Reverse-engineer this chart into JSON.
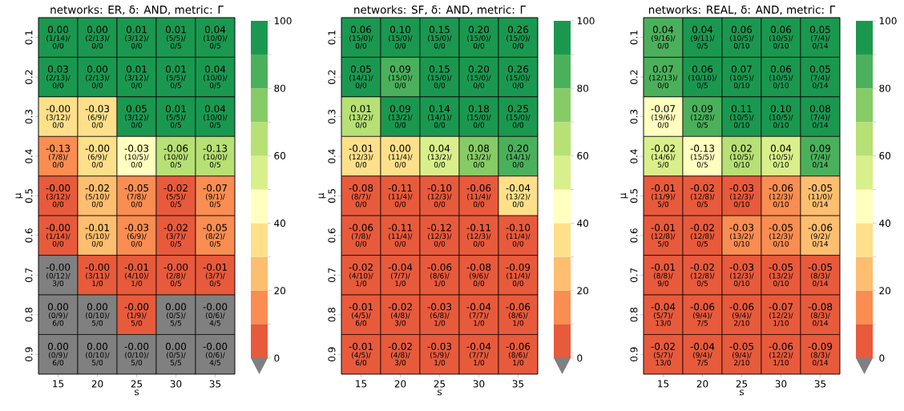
{
  "chart_data": [
    {
      "type": "heatmap",
      "title": "networks: ER, δ: AND, metric: Γ",
      "xlabel": "s",
      "ylabel": "μ",
      "categories": [
        "15",
        "20",
        "25",
        "30",
        "35"
      ],
      "y_categories": [
        "0.1",
        "0.2",
        "0.3",
        "0.4",
        "0.5",
        "0.6",
        "0.7",
        "0.8",
        "0.9"
      ],
      "clim": [
        0,
        100
      ],
      "cticks": [
        0,
        20,
        40,
        60,
        80,
        100
      ],
      "cells": [
        [
          95,
          95,
          95,
          95,
          95
        ],
        [
          95,
          95,
          95,
          95,
          95
        ],
        [
          35,
          35,
          95,
          95,
          95
        ],
        [
          15,
          35,
          45,
          65,
          65
        ],
        [
          5,
          25,
          15,
          5,
          15
        ],
        [
          5,
          25,
          15,
          5,
          15
        ],
        [
          null,
          5,
          5,
          5,
          5
        ],
        [
          null,
          null,
          5,
          null,
          null
        ],
        [
          null,
          null,
          null,
          null,
          null
        ]
      ],
      "cell_labels": [
        [
          [
            "0.00",
            "(1/14)/",
            "0/0"
          ],
          [
            "0.00",
            "(2/13)/",
            "0/0"
          ],
          [
            "0.01",
            "(3/12)/",
            "0/0"
          ],
          [
            "0.01",
            "(5/5)/",
            "0/5"
          ],
          [
            "0.04",
            "(10/0)/",
            "0/5"
          ]
        ],
        [
          [
            "0.03",
            "(2/13)/",
            "0/0"
          ],
          [
            "0.00",
            "(2/13)/",
            "0/0"
          ],
          [
            "0.01",
            "(3/12)/",
            "0/0"
          ],
          [
            "0.01",
            "(5/5)/",
            "0/5"
          ],
          [
            "0.04",
            "(10/0)/",
            "0/5"
          ]
        ],
        [
          [
            "-0.00",
            "(3/12)/",
            "0/0"
          ],
          [
            "-0.03",
            "(6/9)/",
            "0/0"
          ],
          [
            "0.05",
            "(3/12)/",
            "0/0"
          ],
          [
            "0.01",
            "(5/5)/",
            "0/5"
          ],
          [
            "0.04",
            "(10/0)/",
            "0/5"
          ]
        ],
        [
          [
            "-0.13",
            "(7/8)/",
            "0/0"
          ],
          [
            "-0.00",
            "(6/9)/",
            "0/0"
          ],
          [
            "-0.03",
            "(10/5)/",
            "0/0"
          ],
          [
            "-0.06",
            "(10/0)/",
            "0/5"
          ],
          [
            "-0.13",
            "(10/0)/",
            "0/5"
          ]
        ],
        [
          [
            "-0.00",
            "(3/12)/",
            "0/0"
          ],
          [
            "-0.02",
            "(5/10)/",
            "0/0"
          ],
          [
            "-0.05",
            "(7/8)/",
            "0/0"
          ],
          [
            "-0.02",
            "(5/5)/",
            "0/5"
          ],
          [
            "-0.07",
            "(9/1)/",
            "0/5"
          ]
        ],
        [
          [
            "-0.00",
            "(1/14)/",
            "0/0"
          ],
          [
            "-0.01",
            "(5/10)/",
            "0/0"
          ],
          [
            "-0.03",
            "(6/9)/",
            "0/0"
          ],
          [
            "-0.02",
            "(3/7)/",
            "0/5"
          ],
          [
            "-0.05",
            "(8/2)/",
            "0/5"
          ]
        ],
        [
          [
            "-0.00",
            "(0/12)/",
            "3/0"
          ],
          [
            "-0.00",
            "(3/11)/",
            "1/0"
          ],
          [
            "-0.01",
            "(4/10)/",
            "1/0"
          ],
          [
            "-0.00",
            "(2/8)/",
            "0/5"
          ],
          [
            "-0.01",
            "(3/7)/",
            "0/5"
          ]
        ],
        [
          [
            "0.00",
            "(0/9)/",
            "6/0"
          ],
          [
            "0.00",
            "(0/10)/",
            "5/0"
          ],
          [
            "-0.00",
            "(1/9)/",
            "5/0"
          ],
          [
            "0.00",
            "(0/5)/",
            "5/5"
          ],
          [
            "-0.00",
            "(0/6)/",
            "4/5"
          ]
        ],
        [
          [
            "0.00",
            "(0/9)/",
            "6/0"
          ],
          [
            "0.00",
            "(0/10)/",
            "5/0"
          ],
          [
            "-0.00",
            "(0/10)/",
            "5/0"
          ],
          [
            "0.00",
            "(0/5)/",
            "5/5"
          ],
          [
            "-0.00",
            "(0/6)/",
            "4/5"
          ]
        ]
      ]
    },
    {
      "type": "heatmap",
      "title": "networks: SF, δ: AND, metric: Γ",
      "xlabel": "s",
      "ylabel": "μ",
      "categories": [
        "15",
        "20",
        "25",
        "30",
        "35"
      ],
      "y_categories": [
        "0.1",
        "0.2",
        "0.3",
        "0.4",
        "0.5",
        "0.6",
        "0.7",
        "0.8",
        "0.9"
      ],
      "clim": [
        0,
        100
      ],
      "cticks": [
        0,
        20,
        40,
        60,
        80,
        100
      ],
      "cells": [
        [
          95,
          95,
          95,
          95,
          95
        ],
        [
          95,
          85,
          95,
          95,
          95
        ],
        [
          65,
          95,
          95,
          95,
          95
        ],
        [
          35,
          35,
          55,
          75,
          85
        ],
        [
          5,
          5,
          5,
          5,
          35
        ],
        [
          5,
          5,
          5,
          5,
          5
        ],
        [
          5,
          5,
          5,
          5,
          5
        ],
        [
          5,
          5,
          5,
          5,
          5
        ],
        [
          5,
          5,
          5,
          5,
          5
        ]
      ],
      "cell_labels": [
        [
          [
            "0.06",
            "(15/0)/",
            "0/0"
          ],
          [
            "0.10",
            "(15/0)/",
            "0/0"
          ],
          [
            "0.15",
            "(15/0)/",
            "0/0"
          ],
          [
            "0.20",
            "(15/0)/",
            "0/0"
          ],
          [
            "0.26",
            "(15/0)/",
            "0/0"
          ]
        ],
        [
          [
            "0.05",
            "(14/1)/",
            "0/0"
          ],
          [
            "0.09",
            "(15/0)/",
            "0/0"
          ],
          [
            "0.15",
            "(15/0)/",
            "0/0"
          ],
          [
            "0.20",
            "(15/0)/",
            "0/0"
          ],
          [
            "0.26",
            "(15/0)/",
            "0/0"
          ]
        ],
        [
          [
            "0.01",
            "(13/2)/",
            "0/0"
          ],
          [
            "0.09",
            "(13/2)/",
            "0/0"
          ],
          [
            "0.14",
            "(14/1)/",
            "0/0"
          ],
          [
            "0.18",
            "(15/0)/",
            "0/0"
          ],
          [
            "0.25",
            "(15/0)/",
            "0/0"
          ]
        ],
        [
          [
            "-0.01",
            "(12/3)/",
            "0/0"
          ],
          [
            "0.00",
            "(11/4)/",
            "0/0"
          ],
          [
            "0.04",
            "(13/2)/",
            "0/0"
          ],
          [
            "0.08",
            "(13/2)/",
            "0/0"
          ],
          [
            "0.20",
            "(14/1)/",
            "0/0"
          ]
        ],
        [
          [
            "-0.08",
            "(8/7)/",
            "0/0"
          ],
          [
            "-0.11",
            "(11/4)/",
            "0/0"
          ],
          [
            "-0.10",
            "(12/3)/",
            "0/0"
          ],
          [
            "-0.06",
            "(11/4)/",
            "0/0"
          ],
          [
            "-0.04",
            "(13/2)/",
            "0/0"
          ]
        ],
        [
          [
            "-0.06",
            "(7/8)/",
            "0/0"
          ],
          [
            "-0.11",
            "(11/4)/",
            "0/0"
          ],
          [
            "-0.12",
            "(12/3)/",
            "0/0"
          ],
          [
            "-0.11",
            "(12/3)/",
            "0/0"
          ],
          [
            "-0.10",
            "(11/4)/",
            "0/0"
          ]
        ],
        [
          [
            "-0.02",
            "(4/10)/",
            "1/0"
          ],
          [
            "-0.04",
            "(7/7)/",
            "1/0"
          ],
          [
            "-0.06",
            "(8/6)/",
            "1/0"
          ],
          [
            "-0.08",
            "(9/6)/",
            "0/0"
          ],
          [
            "-0.09",
            "(11/4)/",
            "0/0"
          ]
        ],
        [
          [
            "-0.01",
            "(4/5)/",
            "6/0"
          ],
          [
            "-0.02",
            "(4/8)/",
            "3/0"
          ],
          [
            "-0.03",
            "(6/8)/",
            "1/0"
          ],
          [
            "-0.04",
            "(7/7)/",
            "1/0"
          ],
          [
            "-0.06",
            "(8/6)/",
            "1/0"
          ]
        ],
        [
          [
            "-0.01",
            "(4/5)/",
            "6/0"
          ],
          [
            "-0.02",
            "(4/8)/",
            "3/0"
          ],
          [
            "-0.03",
            "(5/9)/",
            "1/0"
          ],
          [
            "-0.04",
            "(7/7)/",
            "1/0"
          ],
          [
            "-0.06",
            "(8/6)/",
            "1/0"
          ]
        ]
      ]
    },
    {
      "type": "heatmap",
      "title": "networks: REAL, δ: AND, metric: Γ",
      "xlabel": "s",
      "ylabel": "μ",
      "categories": [
        "15",
        "20",
        "25",
        "30",
        "35"
      ],
      "y_categories": [
        "0.1",
        "0.2",
        "0.3",
        "0.4",
        "0.5",
        "0.6",
        "0.7",
        "0.8",
        "0.9"
      ],
      "clim": [
        0,
        100
      ],
      "cticks": [
        0,
        20,
        40,
        60,
        80,
        100
      ],
      "cells": [
        [
          85,
          95,
          95,
          95,
          95
        ],
        [
          85,
          95,
          95,
          95,
          95
        ],
        [
          45,
          85,
          95,
          95,
          95
        ],
        [
          55,
          45,
          65,
          55,
          85
        ],
        [
          5,
          5,
          5,
          15,
          25
        ],
        [
          5,
          5,
          15,
          15,
          25
        ],
        [
          5,
          5,
          5,
          5,
          5
        ],
        [
          5,
          5,
          5,
          5,
          5
        ],
        [
          5,
          5,
          5,
          5,
          5
        ]
      ],
      "cell_labels": [
        [
          [
            "0.04",
            "(9/16)/",
            "0/0"
          ],
          [
            "0.04",
            "(9/11)/",
            "0/5"
          ],
          [
            "0.06",
            "(10/5)/",
            "0/10"
          ],
          [
            "0.06",
            "(10/5)/",
            "0/10"
          ],
          [
            "0.05",
            "(7/4)/",
            "0/14"
          ]
        ],
        [
          [
            "0.07",
            "(12/13)/",
            "0/0"
          ],
          [
            "0.06",
            "(10/10)/",
            "0/5"
          ],
          [
            "0.07",
            "(10/5)/",
            "0/10"
          ],
          [
            "0.06",
            "(10/5)/",
            "0/10"
          ],
          [
            "0.05",
            "(7/4)/",
            "0/14"
          ]
        ],
        [
          [
            "-0.07",
            "(19/6)/",
            "0/0"
          ],
          [
            "0.09",
            "(12/8)/",
            "0/5"
          ],
          [
            "0.11",
            "(10/5)/",
            "0/10"
          ],
          [
            "0.10",
            "(10/5)/",
            "0/10"
          ],
          [
            "0.08",
            "(7/4)/",
            "0/14"
          ]
        ],
        [
          [
            "-0.02",
            "(14/6)/",
            "5/0"
          ],
          [
            "-0.13",
            "(15/5)/",
            "0/5"
          ],
          [
            "0.02",
            "(10/5)/",
            "0/10"
          ],
          [
            "0.04",
            "(10/5)/",
            "0/10"
          ],
          [
            "0.09",
            "(7/4)/",
            "0/14"
          ]
        ],
        [
          [
            "-0.01",
            "(11/9)/",
            "5/0"
          ],
          [
            "-0.02",
            "(12/8)/",
            "0/5"
          ],
          [
            "-0.03",
            "(12/3)/",
            "0/10"
          ],
          [
            "-0.06",
            "(12/3)/",
            "0/10"
          ],
          [
            "-0.05",
            "(11/0)/",
            "0/14"
          ]
        ],
        [
          [
            "-0.01",
            "(12/8)/",
            "5/0"
          ],
          [
            "-0.02",
            "(12/8)/",
            "0/5"
          ],
          [
            "-0.03",
            "(13/2)/",
            "0/10"
          ],
          [
            "-0.05",
            "(12/3)/",
            "0/10"
          ],
          [
            "-0.06",
            "(9/2)/",
            "0/14"
          ]
        ],
        [
          [
            "-0.01",
            "(8/8)/",
            "9/0"
          ],
          [
            "-0.02",
            "(12/8)/",
            "0/5"
          ],
          [
            "-0.03",
            "(12/3)/",
            "0/10"
          ],
          [
            "-0.05",
            "(13/2)/",
            "0/10"
          ],
          [
            "-0.05",
            "(8/3)/",
            "0/14"
          ]
        ],
        [
          [
            "-0.04",
            "(5/7)/",
            "13/0"
          ],
          [
            "-0.06",
            "(9/4)/",
            "7/5"
          ],
          [
            "-0.06",
            "(9/4)/",
            "2/10"
          ],
          [
            "-0.07",
            "(12/2)/",
            "1/10"
          ],
          [
            "-0.08",
            "(8/3)/",
            "0/14"
          ]
        ],
        [
          [
            "-0.02",
            "(5/7)/",
            "13/0"
          ],
          [
            "-0.04",
            "(9/4)/",
            "7/5"
          ],
          [
            "-0.05",
            "(9/4)/",
            "2/10"
          ],
          [
            "-0.06",
            "(12/2)/",
            "1/10"
          ],
          [
            "-0.09",
            "(8/3)/",
            "0/14"
          ]
        ]
      ]
    }
  ]
}
